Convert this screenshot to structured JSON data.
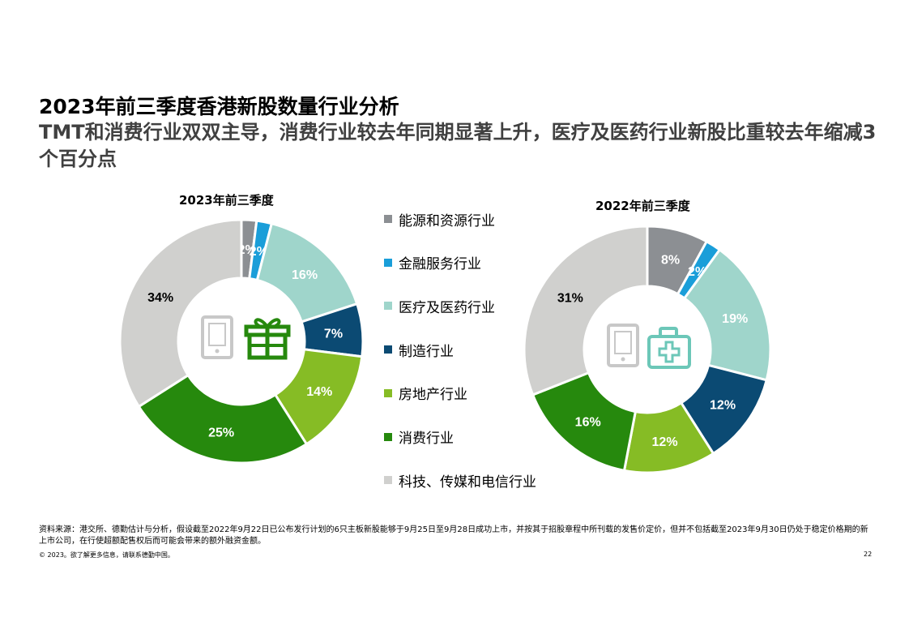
{
  "title": "2023年前三季度香港新股数量行业分析",
  "subtitle": "TMT和消费行业双双主导，消费行业较去年同期显著上升，医疗及医药行业新股比重较去年缩减3个百分点",
  "legend": [
    {
      "label": "能源和资源行业",
      "color": "#8c8f93"
    },
    {
      "label": "金融服务行业",
      "color": "#1a9ed9"
    },
    {
      "label": "医疗及医药行业",
      "color": "#9fd5cb"
    },
    {
      "label": "制造行业",
      "color": "#0b4a73"
    },
    {
      "label": "房地产行业",
      "color": "#86bc25"
    },
    {
      "label": "消费行业",
      "color": "#26890d"
    },
    {
      "label": "科技、传媒和电信行业",
      "color": "#d0d0ce"
    }
  ],
  "chart_data": [
    {
      "type": "pie",
      "title": "2023年前三季度",
      "center_icons": [
        "tablet-icon",
        "gift-icon"
      ],
      "slices": [
        {
          "category": "能源和资源行业",
          "value": 2,
          "label": "2%",
          "color": "#8c8f93"
        },
        {
          "category": "金融服务行业",
          "value": 2,
          "label": "2%",
          "color": "#1a9ed9"
        },
        {
          "category": "医疗及医药行业",
          "value": 16,
          "label": "16%",
          "color": "#9fd5cb"
        },
        {
          "category": "制造行业",
          "value": 7,
          "label": "7%",
          "color": "#0b4a73"
        },
        {
          "category": "房地产行业",
          "value": 14,
          "label": "14%",
          "color": "#86bc25"
        },
        {
          "category": "消费行业",
          "value": 25,
          "label": "25%",
          "color": "#26890d"
        },
        {
          "category": "科技、传媒和电信行业",
          "value": 34,
          "label": "34%",
          "color": "#d0d0ce"
        }
      ]
    },
    {
      "type": "pie",
      "title": "2022年前三季度",
      "center_icons": [
        "tablet-icon",
        "medical-kit-icon"
      ],
      "slices": [
        {
          "category": "能源和资源行业",
          "value": 8,
          "label": "8%",
          "color": "#8c8f93"
        },
        {
          "category": "金融服务行业",
          "value": 2,
          "label": "2%",
          "color": "#1a9ed9"
        },
        {
          "category": "医疗及医药行业",
          "value": 19,
          "label": "19%",
          "color": "#9fd5cb"
        },
        {
          "category": "制造行业",
          "value": 12,
          "label": "12%",
          "color": "#0b4a73"
        },
        {
          "category": "房地产行业",
          "value": 12,
          "label": "12%",
          "color": "#86bc25"
        },
        {
          "category": "消费行业",
          "value": 16,
          "label": "16%",
          "color": "#26890d"
        },
        {
          "category": "科技、传媒和电信行业",
          "value": 31,
          "label": "31%",
          "color": "#d0d0ce"
        }
      ]
    }
  ],
  "footnote": "资料来源：港交所、德勤估计与分析，假设截至2022年9月22日已公布发行计划的6只主板新股能够于9月25日至9月28日成功上市，并按其于招股章程中所刊载的发售价定价，但并不包括截至2023年9月30日仍处于稳定价格期的新上市公司，在行使超额配售权后而可能会带来的额外融资金额。",
  "copyright": "© 2023。欲了解更多信息，请联系德勤中国。",
  "page_number": "22"
}
